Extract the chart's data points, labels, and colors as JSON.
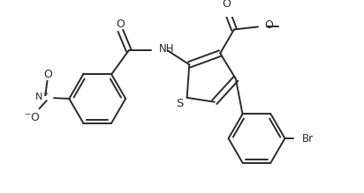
{
  "bg_color": "#ffffff",
  "line_color": "#2a2a2a",
  "line_width": 1.4,
  "font_size": 8.5,
  "xlim": [
    0,
    10
  ],
  "ylim": [
    0,
    5.32
  ],
  "figsize": [
    4.12,
    2.19
  ]
}
